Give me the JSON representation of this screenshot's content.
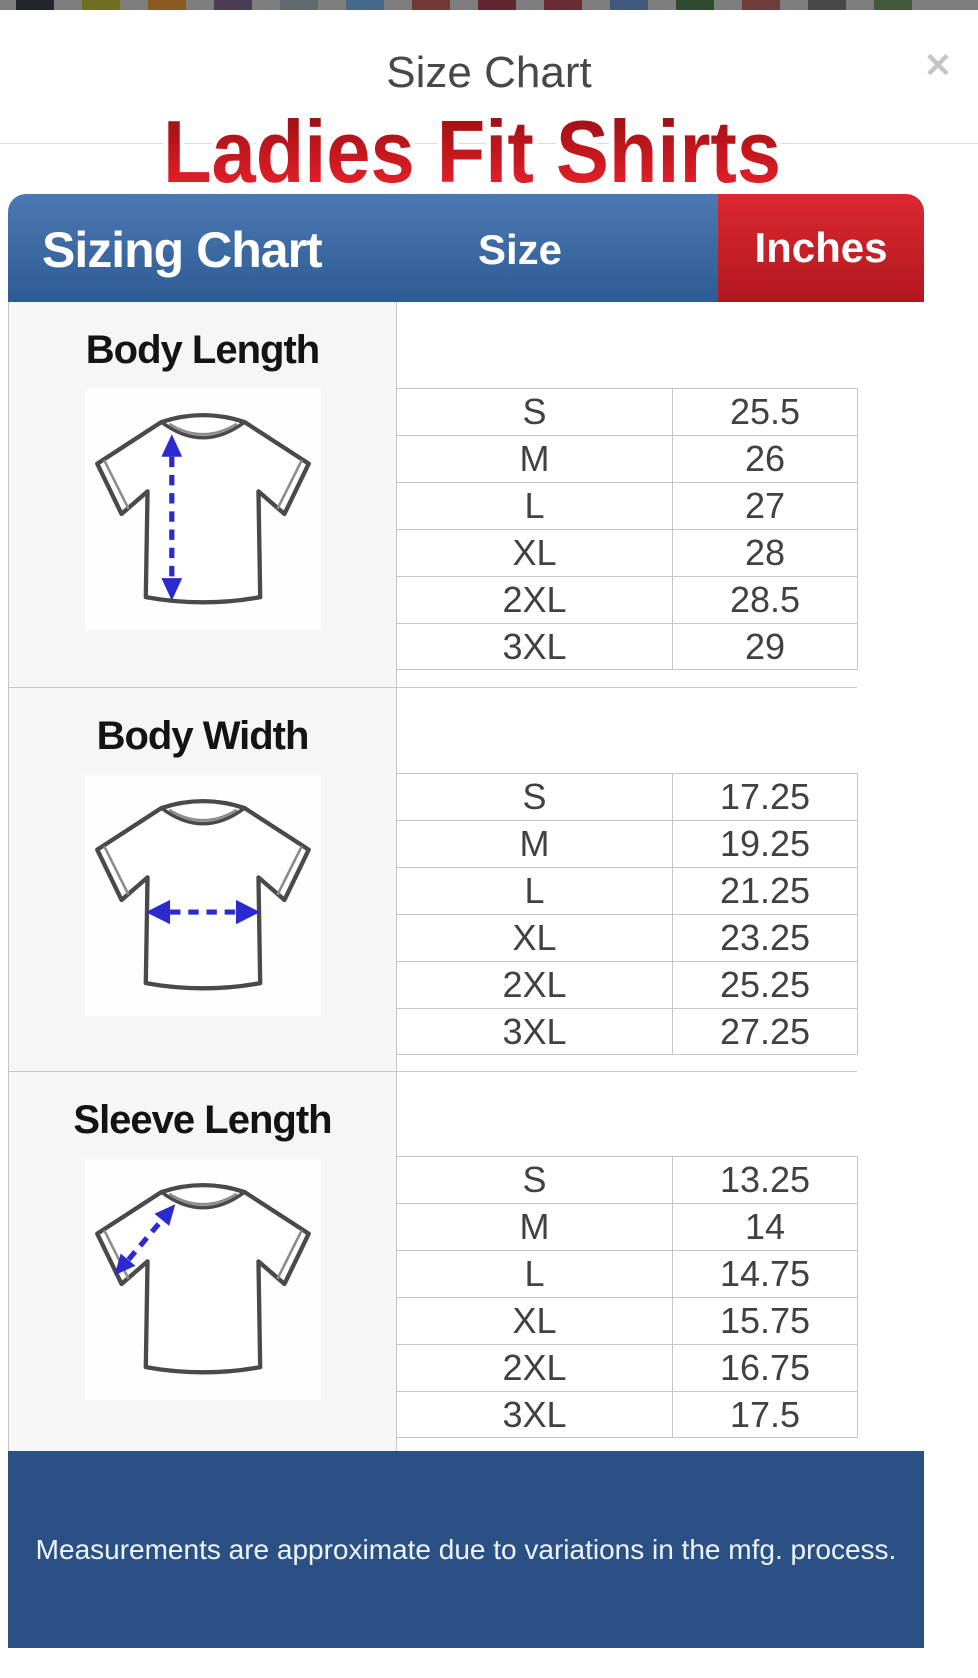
{
  "page": {
    "behind_swatches": [
      "#23252e",
      "#6f6d20",
      "#8a5a22",
      "#4b3c55",
      "#606a6f",
      "#46688c",
      "#6f3a34",
      "#5e2731",
      "#6b2d34",
      "#3f5a7a",
      "#2f4a2f",
      "#6f3d3b",
      "#484848",
      "#405a3a"
    ]
  },
  "modal": {
    "title": "Size Chart",
    "close_icon": "✕"
  },
  "chart_data": {
    "type": "table",
    "title": "Ladies Fit Shirts",
    "columns": [
      "Sizing Chart",
      "Size",
      "Inches"
    ],
    "sections": [
      {
        "label": "Body Length",
        "measure_arrow": "vertical",
        "rows": [
          {
            "size": "S",
            "inches": 25.5
          },
          {
            "size": "M",
            "inches": 26
          },
          {
            "size": "L",
            "inches": 27
          },
          {
            "size": "XL",
            "inches": 28
          },
          {
            "size": "2XL",
            "inches": 28.5
          },
          {
            "size": "3XL",
            "inches": 29
          }
        ]
      },
      {
        "label": "Body Width",
        "measure_arrow": "horizontal",
        "rows": [
          {
            "size": "S",
            "inches": 17.25
          },
          {
            "size": "M",
            "inches": 19.25
          },
          {
            "size": "L",
            "inches": 21.25
          },
          {
            "size": "XL",
            "inches": 23.25
          },
          {
            "size": "2XL",
            "inches": 25.25
          },
          {
            "size": "3XL",
            "inches": 27.25
          }
        ]
      },
      {
        "label": "Sleeve Length",
        "measure_arrow": "diagonal",
        "rows": [
          {
            "size": "S",
            "inches": 13.25
          },
          {
            "size": "M",
            "inches": 14
          },
          {
            "size": "L",
            "inches": 14.75
          },
          {
            "size": "XL",
            "inches": 15.75
          },
          {
            "size": "2XL",
            "inches": 16.75
          },
          {
            "size": "3XL",
            "inches": 17.5
          }
        ]
      }
    ],
    "footnote": "Measurements are approximate due to variations in the mfg. process."
  },
  "theme": {
    "header-blue-top": "#4c79b1",
    "header-blue-bottom": "#2d5b95",
    "header-red-top": "#dc2830",
    "header-red-bottom": "#b2181f",
    "footer-navy": "#2b5184",
    "title-red-top": "#8f0e13",
    "title-red-bottom": "#ee2531",
    "arrow-blue": "#2a2ad0",
    "table-border": "#c6c6c6"
  }
}
